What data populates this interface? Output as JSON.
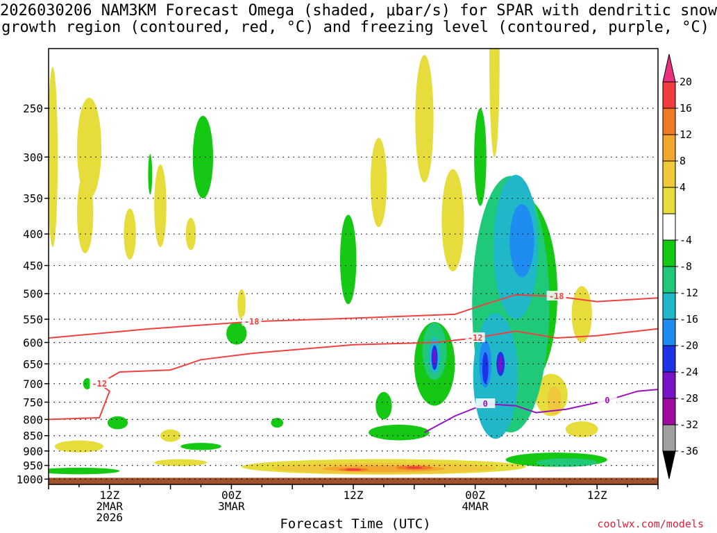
{
  "chart_data": {
    "type": "heatmap",
    "title_line1": "2026030206 NAM3KM Forecast Omega (shaded, μbar/s) for SPAR with dendritic snow",
    "title_line2": "growth region (contoured, red, °C) and freezing level (contoured, purple, °C)",
    "xlabel": "Forecast Time (UTC)",
    "x_ticks": [
      {
        "hours": 6,
        "line1": "12Z",
        "line2": "2MAR",
        "line3": "2026"
      },
      {
        "hours": 18,
        "line1": "00Z",
        "line2": "3MAR",
        "line3": ""
      },
      {
        "hours": 30,
        "line1": "12Z",
        "line2": "",
        "line3": ""
      },
      {
        "hours": 42,
        "line1": "00Z",
        "line2": "4MAR",
        "line3": ""
      },
      {
        "hours": 54,
        "line1": "12Z",
        "line2": "",
        "line3": ""
      }
    ],
    "x_range_hours": [
      0,
      60
    ],
    "y_ticks": [
      "250",
      "300",
      "350",
      "400",
      "450",
      "500",
      "550",
      "600",
      "650",
      "700",
      "750",
      "800",
      "850",
      "900",
      "950",
      "1000"
    ],
    "y_range_mb": [
      200,
      1020
    ],
    "colorbar": {
      "labels": [
        "20",
        "16",
        "12",
        "8",
        "4",
        "-4",
        "-8",
        "-12",
        "-16",
        "-20",
        "-24",
        "-28",
        "-32",
        "-36"
      ],
      "colors": [
        "#e8327e",
        "#f03c3c",
        "#f07a28",
        "#f2a830",
        "#f0c83c",
        "#e6dc3c",
        "#ffffff",
        "#14c814",
        "#20c87a",
        "#20b8c8",
        "#1e8cf0",
        "#1e32e6",
        "#7814c8",
        "#a00aa0",
        "#a0a0a0",
        "#000000"
      ]
    },
    "omega_areas": [
      {
        "label": "ascent",
        "value": -8,
        "t": 45,
        "p": 400
      },
      {
        "label": "ascent",
        "value": -16,
        "t": 46,
        "p": 420
      },
      {
        "label": "ascent",
        "value": -24,
        "t": 38,
        "p": 630
      },
      {
        "label": "ascent",
        "value": -24,
        "t": 44,
        "p": 650
      },
      {
        "label": "descent",
        "value": 12,
        "t": 34,
        "p": 960
      }
    ],
    "dgz_contours": [
      {
        "level": -18,
        "label": "-18",
        "points": [
          [
            0,
            590
          ],
          [
            10,
            570
          ],
          [
            20,
            555
          ],
          [
            30,
            548
          ],
          [
            40,
            540
          ],
          [
            43,
            520
          ],
          [
            46,
            502
          ],
          [
            50,
            505
          ],
          [
            54,
            515
          ],
          [
            60,
            508
          ]
        ]
      },
      {
        "level": -12,
        "label": "-12",
        "points": [
          [
            0,
            800
          ],
          [
            5,
            795
          ],
          [
            6,
            720
          ],
          [
            5,
            700
          ],
          [
            7,
            670
          ],
          [
            12,
            665
          ],
          [
            15,
            640
          ],
          [
            20,
            625
          ],
          [
            30,
            605
          ],
          [
            38,
            600
          ],
          [
            42,
            590
          ],
          [
            46,
            575
          ],
          [
            50,
            590
          ],
          [
            54,
            585
          ],
          [
            60,
            570
          ]
        ]
      }
    ],
    "freezing_contours": [
      {
        "level": 0,
        "label": "0",
        "points": [
          [
            37,
            840
          ],
          [
            40,
            790
          ],
          [
            43,
            755
          ],
          [
            46,
            760
          ],
          [
            48,
            780
          ],
          [
            51,
            770
          ],
          [
            55,
            745
          ],
          [
            58,
            720
          ],
          [
            60,
            715
          ]
        ]
      }
    ],
    "watermark": "coolwx.com/models"
  }
}
